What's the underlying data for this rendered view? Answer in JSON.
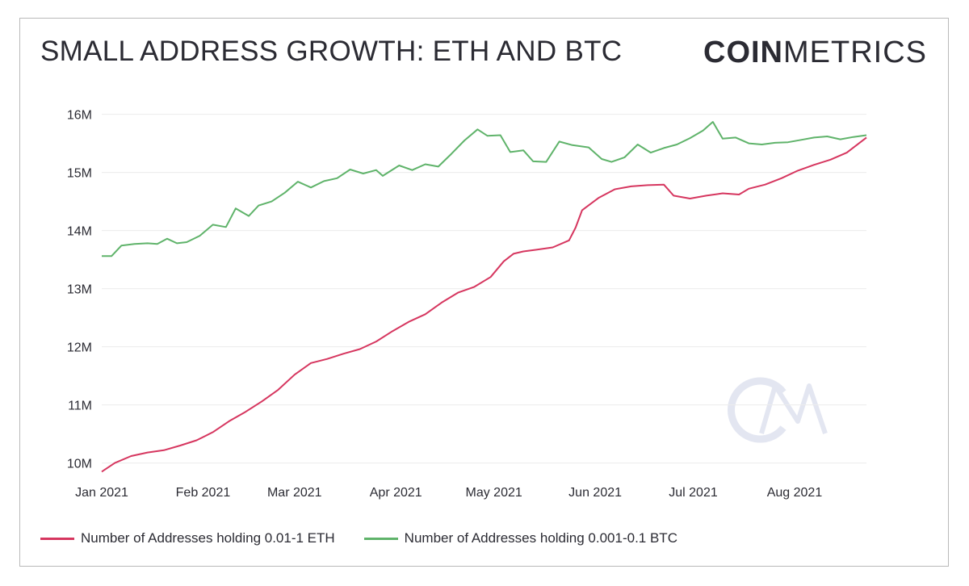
{
  "title": "SMALL ADDRESS GROWTH: ETH AND BTC",
  "logo": {
    "bold": "COIN",
    "light": "METRICS"
  },
  "colors": {
    "eth": "#d6365f",
    "btc": "#5fb36a",
    "grid": "#ececec",
    "watermark": "#e3e6f1"
  },
  "chart_data": {
    "type": "line",
    "title": "SMALL ADDRESS GROWTH: ETH AND BTC",
    "xlabel": "",
    "ylabel": "",
    "x_range": [
      "2021-01-01",
      "2021-08-23"
    ],
    "ylim": [
      9800000,
      16300000
    ],
    "y_ticks": [
      10000000,
      11000000,
      12000000,
      13000000,
      14000000,
      15000000,
      16000000
    ],
    "y_tick_labels": [
      "10M",
      "11M",
      "12M",
      "13M",
      "14M",
      "15M",
      "16M"
    ],
    "x_ticks": [
      "2021-01-01",
      "2021-02-01",
      "2021-03-01",
      "2021-04-01",
      "2021-05-01",
      "2021-06-01",
      "2021-07-01",
      "2021-08-01"
    ],
    "x_tick_labels": [
      "Jan 2021",
      "Feb 2021",
      "Mar 2021",
      "Apr 2021",
      "May 2021",
      "Jun 2021",
      "Jul 2021",
      "Aug 2021"
    ],
    "grid": true,
    "legend_position": "bottom-left",
    "series": [
      {
        "name": "Number of Addresses holding 0.01-1 ETH",
        "color": "#d6365f",
        "points": [
          [
            "2021-01-01",
            9850000
          ],
          [
            "2021-01-05",
            10000000
          ],
          [
            "2021-01-10",
            10120000
          ],
          [
            "2021-01-15",
            10180000
          ],
          [
            "2021-01-20",
            10220000
          ],
          [
            "2021-01-25",
            10300000
          ],
          [
            "2021-01-30",
            10390000
          ],
          [
            "2021-02-04",
            10530000
          ],
          [
            "2021-02-09",
            10720000
          ],
          [
            "2021-02-14",
            10880000
          ],
          [
            "2021-02-19",
            11060000
          ],
          [
            "2021-02-24",
            11260000
          ],
          [
            "2021-03-01",
            11520000
          ],
          [
            "2021-03-06",
            11720000
          ],
          [
            "2021-03-11",
            11790000
          ],
          [
            "2021-03-16",
            11880000
          ],
          [
            "2021-03-21",
            11960000
          ],
          [
            "2021-03-26",
            12090000
          ],
          [
            "2021-03-31",
            12270000
          ],
          [
            "2021-04-05",
            12430000
          ],
          [
            "2021-04-10",
            12560000
          ],
          [
            "2021-04-15",
            12760000
          ],
          [
            "2021-04-20",
            12930000
          ],
          [
            "2021-04-25",
            13030000
          ],
          [
            "2021-04-30",
            13200000
          ],
          [
            "2021-05-04",
            13470000
          ],
          [
            "2021-05-07",
            13600000
          ],
          [
            "2021-05-10",
            13640000
          ],
          [
            "2021-05-14",
            13670000
          ],
          [
            "2021-05-19",
            13710000
          ],
          [
            "2021-05-24",
            13830000
          ],
          [
            "2021-05-26",
            14050000
          ],
          [
            "2021-05-28",
            14350000
          ],
          [
            "2021-06-02",
            14560000
          ],
          [
            "2021-06-07",
            14710000
          ],
          [
            "2021-06-12",
            14760000
          ],
          [
            "2021-06-17",
            14780000
          ],
          [
            "2021-06-22",
            14790000
          ],
          [
            "2021-06-25",
            14600000
          ],
          [
            "2021-06-30",
            14550000
          ],
          [
            "2021-07-05",
            14600000
          ],
          [
            "2021-07-10",
            14640000
          ],
          [
            "2021-07-15",
            14620000
          ],
          [
            "2021-07-18",
            14720000
          ],
          [
            "2021-07-23",
            14790000
          ],
          [
            "2021-07-28",
            14900000
          ],
          [
            "2021-08-02",
            15030000
          ],
          [
            "2021-08-07",
            15130000
          ],
          [
            "2021-08-12",
            15220000
          ],
          [
            "2021-08-17",
            15340000
          ],
          [
            "2021-08-23",
            15600000
          ]
        ]
      },
      {
        "name": "Number of Addresses holding 0.001-0.1 BTC",
        "color": "#5fb36a",
        "points": [
          [
            "2021-01-01",
            13560000
          ],
          [
            "2021-01-04",
            13560000
          ],
          [
            "2021-01-07",
            13740000
          ],
          [
            "2021-01-11",
            13770000
          ],
          [
            "2021-01-15",
            13780000
          ],
          [
            "2021-01-18",
            13770000
          ],
          [
            "2021-01-21",
            13860000
          ],
          [
            "2021-01-24",
            13780000
          ],
          [
            "2021-01-27",
            13800000
          ],
          [
            "2021-01-31",
            13910000
          ],
          [
            "2021-02-04",
            14100000
          ],
          [
            "2021-02-08",
            14060000
          ],
          [
            "2021-02-11",
            14380000
          ],
          [
            "2021-02-15",
            14250000
          ],
          [
            "2021-02-18",
            14430000
          ],
          [
            "2021-02-22",
            14500000
          ],
          [
            "2021-02-26",
            14650000
          ],
          [
            "2021-03-02",
            14840000
          ],
          [
            "2021-03-06",
            14740000
          ],
          [
            "2021-03-10",
            14850000
          ],
          [
            "2021-03-14",
            14900000
          ],
          [
            "2021-03-18",
            15050000
          ],
          [
            "2021-03-22",
            14980000
          ],
          [
            "2021-03-26",
            15040000
          ],
          [
            "2021-03-28",
            14940000
          ],
          [
            "2021-04-02",
            15120000
          ],
          [
            "2021-04-06",
            15040000
          ],
          [
            "2021-04-10",
            15140000
          ],
          [
            "2021-04-14",
            15100000
          ],
          [
            "2021-04-18",
            15320000
          ],
          [
            "2021-04-22",
            15550000
          ],
          [
            "2021-04-26",
            15740000
          ],
          [
            "2021-04-29",
            15630000
          ],
          [
            "2021-05-03",
            15640000
          ],
          [
            "2021-05-06",
            15350000
          ],
          [
            "2021-05-10",
            15380000
          ],
          [
            "2021-05-13",
            15190000
          ],
          [
            "2021-05-17",
            15180000
          ],
          [
            "2021-05-21",
            15530000
          ],
          [
            "2021-05-25",
            15470000
          ],
          [
            "2021-05-30",
            15430000
          ],
          [
            "2021-06-03",
            15230000
          ],
          [
            "2021-06-06",
            15180000
          ],
          [
            "2021-06-10",
            15260000
          ],
          [
            "2021-06-14",
            15480000
          ],
          [
            "2021-06-18",
            15340000
          ],
          [
            "2021-06-22",
            15420000
          ],
          [
            "2021-06-26",
            15480000
          ],
          [
            "2021-06-30",
            15590000
          ],
          [
            "2021-07-04",
            15720000
          ],
          [
            "2021-07-07",
            15870000
          ],
          [
            "2021-07-10",
            15580000
          ],
          [
            "2021-07-14",
            15600000
          ],
          [
            "2021-07-18",
            15500000
          ],
          [
            "2021-07-22",
            15480000
          ],
          [
            "2021-07-26",
            15510000
          ],
          [
            "2021-07-30",
            15520000
          ],
          [
            "2021-08-03",
            15560000
          ],
          [
            "2021-08-07",
            15600000
          ],
          [
            "2021-08-11",
            15620000
          ],
          [
            "2021-08-15",
            15570000
          ],
          [
            "2021-08-19",
            15610000
          ],
          [
            "2021-08-23",
            15640000
          ]
        ]
      }
    ]
  }
}
